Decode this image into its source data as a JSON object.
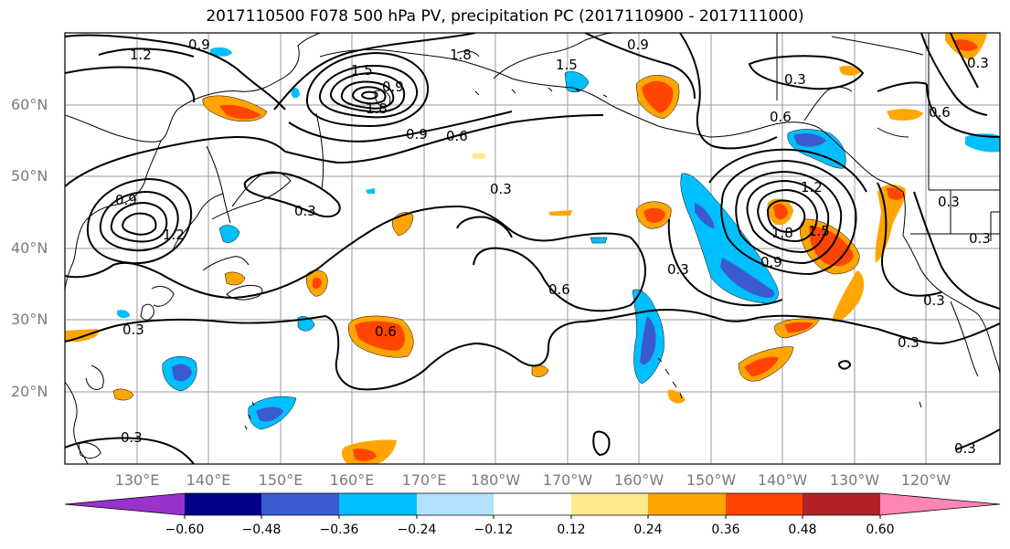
{
  "title": "2017110500 F078 500 hPa PV, precipitation PC (2017110900 - 2017111000)",
  "map": {
    "lat_labels": [
      "60°N",
      "50°N",
      "40°N",
      "30°N",
      "20°N"
    ],
    "lon_labels": [
      "130°E",
      "140°E",
      "150°E",
      "160°E",
      "170°E",
      "180°W",
      "170°W",
      "160°W",
      "150°W",
      "140°W",
      "130°W",
      "120°W"
    ],
    "contour_labels": [
      "1.2",
      "0.9",
      "1.5",
      "1.8",
      "0.9",
      "1.8",
      "0.9",
      "1.5",
      "0.9",
      "0.6",
      "0.3",
      "0.6",
      "0.6",
      "0.9",
      "1.2",
      "0.3",
      "0.3",
      "0.3",
      "0.6",
      "1.2",
      "1.5",
      "1.8",
      "0.9",
      "0.3",
      "0.3",
      "0.6",
      "0.3",
      "0.3",
      "0.3",
      "0.3",
      "0.3",
      "0.3"
    ]
  },
  "colorbar": {
    "colors": [
      "#9932cc",
      "#00008b",
      "#3a5bcf",
      "#00bfff",
      "#b2e2ff",
      "#ffffff",
      "#ffeb8c",
      "#ffa500",
      "#ff4500",
      "#b22222",
      "#ff85b5"
    ],
    "tick_labels": [
      "−0.60",
      "−0.48",
      "−0.36",
      "−0.24",
      "−0.12",
      "0.12",
      "0.24",
      "0.36",
      "0.48",
      "0.60"
    ]
  }
}
